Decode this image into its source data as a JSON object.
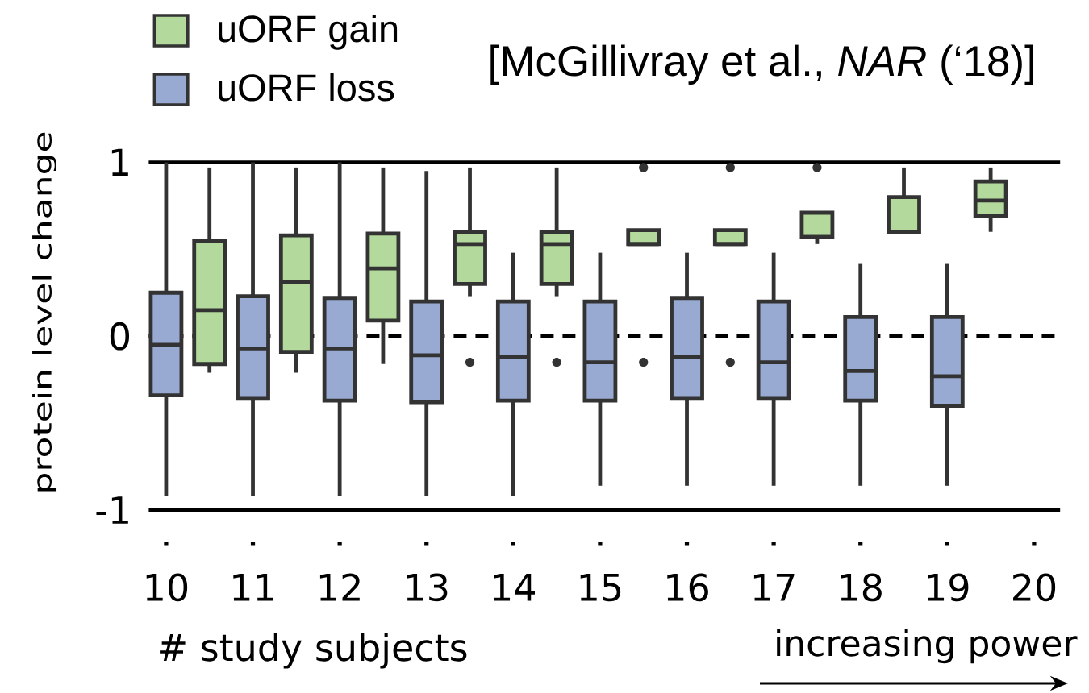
{
  "chart_data": {
    "type": "box",
    "xlabel": "# study subjects",
    "ylabel": "protein level change",
    "annotations": [
      "[McGillivray et al., *NAR* (‘18)]",
      "increasing power"
    ],
    "categories": [
      "10",
      null,
      "11",
      null,
      "12",
      null,
      "13",
      null,
      "14",
      null,
      "15",
      null,
      "16",
      null,
      "17",
      null,
      "18",
      null,
      "19",
      null,
      "20"
    ],
    "ylim": [
      -1,
      1
    ],
    "yticks": [
      -1,
      0,
      1
    ],
    "legend": "top left",
    "ref_lines": [
      {
        "axis": "y",
        "value": 1
      },
      {
        "axis": "y",
        "value": 0,
        "line_style": "dashed"
      }
    ],
    "series": [
      {
        "name": "uORF gain",
        "color": "#b3d99c",
        "boxes": [
          null,
          {
            "low": -0.21,
            "q1": -0.16,
            "median": 0.15,
            "q3": 0.55,
            "high": 0.97
          },
          null,
          {
            "low": -0.21,
            "q1": -0.09,
            "median": 0.31,
            "q3": 0.58,
            "high": 0.97
          },
          null,
          {
            "low": -0.16,
            "q1": 0.09,
            "median": 0.39,
            "q3": 0.59,
            "high": 0.97
          },
          null,
          {
            "low": 0.23,
            "q1": 0.3,
            "median": 0.53,
            "q3": 0.6,
            "high": 0.97,
            "outliers": [
              -0.15
            ]
          },
          null,
          {
            "low": 0.23,
            "q1": 0.3,
            "median": 0.53,
            "q3": 0.6,
            "high": 0.97,
            "outliers": [
              -0.15
            ]
          },
          null,
          {
            "low": 0.53,
            "q1": 0.53,
            "median": 0.53,
            "q3": 0.61,
            "high": 0.61,
            "outliers": [
              -0.15,
              0.97
            ]
          },
          null,
          {
            "low": 0.53,
            "q1": 0.53,
            "median": 0.53,
            "q3": 0.61,
            "high": 0.61,
            "outliers": [
              -0.15,
              0.97
            ]
          },
          null,
          {
            "low": 0.53,
            "q1": 0.57,
            "median": 0.57,
            "q3": 0.71,
            "high": 0.71,
            "outliers": [
              0.97
            ]
          },
          null,
          {
            "low": 0.6,
            "q1": 0.6,
            "median": 0.6,
            "q3": 0.8,
            "high": 0.97
          },
          null,
          {
            "low": 0.6,
            "q1": 0.69,
            "median": 0.78,
            "q3": 0.89,
            "high": 0.97
          },
          null
        ]
      },
      {
        "name": "uORF loss",
        "color": "#99aad2",
        "boxes": [
          {
            "low": -0.92,
            "q1": -0.34,
            "median": -0.05,
            "q3": 0.25,
            "high": 1.0
          },
          null,
          {
            "low": -0.92,
            "q1": -0.36,
            "median": -0.07,
            "q3": 0.23,
            "high": 1.0
          },
          null,
          {
            "low": -0.92,
            "q1": -0.37,
            "median": -0.07,
            "q3": 0.22,
            "high": 1.0
          },
          null,
          {
            "low": -0.92,
            "q1": -0.38,
            "median": -0.11,
            "q3": 0.2,
            "high": 0.95
          },
          null,
          {
            "low": -0.92,
            "q1": -0.37,
            "median": -0.12,
            "q3": 0.2,
            "high": 0.48
          },
          null,
          {
            "low": -0.86,
            "q1": -0.37,
            "median": -0.15,
            "q3": 0.2,
            "high": 0.48
          },
          null,
          {
            "low": -0.86,
            "q1": -0.36,
            "median": -0.12,
            "q3": 0.22,
            "high": 0.48
          },
          null,
          {
            "low": -0.86,
            "q1": -0.36,
            "median": -0.15,
            "q3": 0.2,
            "high": 0.48
          },
          null,
          {
            "low": -0.86,
            "q1": -0.37,
            "median": -0.2,
            "q3": 0.11,
            "high": 0.42
          },
          null,
          {
            "low": -0.86,
            "q1": -0.4,
            "median": -0.23,
            "q3": 0.11,
            "high": 0.42
          },
          null,
          null
        ]
      }
    ]
  }
}
